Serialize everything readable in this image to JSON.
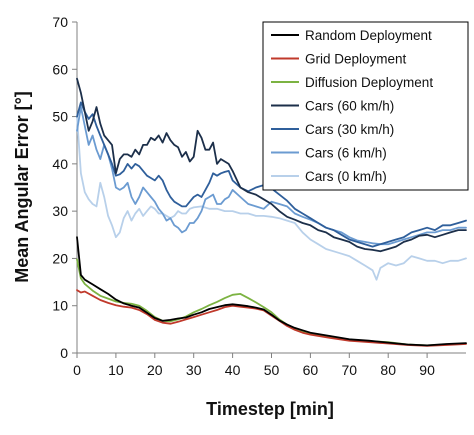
{
  "chart_data": {
    "type": "line",
    "title": "",
    "xlabel": "Timestep [min]",
    "ylabel": "Mean Angular Error [°]",
    "xlim": [
      0,
      100
    ],
    "ylim": [
      0,
      70
    ],
    "xticks": [
      0,
      10,
      20,
      30,
      40,
      50,
      60,
      70,
      80,
      90
    ],
    "yticks": [
      0,
      10,
      20,
      30,
      40,
      50,
      60,
      70
    ],
    "grid": false,
    "legend_position": "top-right",
    "series": [
      {
        "name": "Random Deployment",
        "color": "#000000",
        "x": [
          0,
          1,
          2,
          4,
          6,
          8,
          10,
          12,
          14,
          16,
          18,
          20,
          22,
          24,
          26,
          28,
          30,
          32,
          34,
          36,
          38,
          40,
          42,
          44,
          46,
          48,
          50,
          52,
          54,
          56,
          58,
          60,
          65,
          70,
          75,
          80,
          85,
          90,
          95,
          100
        ],
        "y": [
          24.5,
          16.5,
          15.5,
          14.5,
          13.5,
          12.5,
          11.3,
          10.5,
          10.0,
          9.6,
          8.5,
          7.4,
          6.8,
          7.0,
          7.3,
          7.5,
          8.1,
          8.6,
          9.3,
          9.7,
          10.1,
          10.3,
          10.1,
          9.9,
          9.6,
          9.2,
          8.1,
          6.9,
          6.0,
          5.3,
          4.8,
          4.3,
          3.6,
          2.9,
          2.6,
          2.2,
          1.8,
          1.6,
          1.9,
          2.1
        ]
      },
      {
        "name": "Grid Deployment",
        "color": "#c0392b",
        "x": [
          0,
          1,
          2,
          4,
          6,
          8,
          10,
          12,
          14,
          16,
          18,
          20,
          22,
          24,
          26,
          28,
          30,
          32,
          34,
          36,
          38,
          40,
          42,
          44,
          46,
          48,
          50,
          52,
          54,
          56,
          58,
          60,
          65,
          70,
          75,
          80,
          85,
          90,
          95,
          100
        ],
        "y": [
          13.3,
          12.8,
          13.0,
          12.1,
          11.2,
          10.6,
          10.1,
          9.8,
          9.6,
          9.1,
          8.2,
          7.0,
          6.4,
          6.2,
          6.6,
          7.1,
          7.6,
          8.1,
          8.6,
          9.1,
          9.7,
          10.0,
          9.8,
          9.6,
          9.4,
          9.0,
          7.9,
          6.8,
          5.7,
          4.9,
          4.3,
          3.9,
          3.2,
          2.6,
          2.3,
          2.0,
          1.7,
          1.5,
          1.7,
          1.9
        ]
      },
      {
        "name": "Diffusion Deployment",
        "color": "#7cb342",
        "x": [
          0,
          1,
          2,
          4,
          6,
          8,
          10,
          12,
          14,
          16,
          18,
          20,
          22,
          24,
          26,
          28,
          30,
          32,
          34,
          36,
          38,
          40,
          42,
          44,
          46,
          48,
          50,
          52,
          54,
          56,
          58,
          60,
          65,
          70,
          75,
          80,
          85,
          90,
          95,
          100
        ],
        "y": [
          19.8,
          15.8,
          14.6,
          13.2,
          12.1,
          11.5,
          10.9,
          10.6,
          10.4,
          10.0,
          8.9,
          7.6,
          6.8,
          6.7,
          7.1,
          7.7,
          8.6,
          9.3,
          10.1,
          10.8,
          11.6,
          12.3,
          12.5,
          11.6,
          10.7,
          9.7,
          8.6,
          7.1,
          6.0,
          5.2,
          4.6,
          4.1,
          3.3,
          2.7,
          2.5,
          2.3,
          1.8,
          1.6,
          1.8,
          2.0
        ]
      },
      {
        "name": "Cars (60 km/h)",
        "color": "#1c2f4a",
        "x": [
          0,
          1,
          2,
          3,
          4,
          5,
          6,
          7,
          8,
          9,
          10,
          11,
          12,
          13,
          14,
          15,
          16,
          17,
          18,
          19,
          20,
          21,
          22,
          23,
          24,
          25,
          26,
          27,
          28,
          29,
          30,
          31,
          32,
          33,
          34,
          35,
          36,
          37,
          38,
          39,
          40,
          42,
          44,
          46,
          48,
          50,
          52,
          54,
          56,
          58,
          60,
          62,
          64,
          66,
          68,
          70,
          72,
          74,
          76,
          78,
          80,
          82,
          84,
          86,
          88,
          90,
          92,
          94,
          96,
          98,
          100
        ],
        "y": [
          58,
          55,
          51,
          47,
          49,
          52,
          48.5,
          46,
          45,
          44,
          38,
          41,
          42,
          42,
          41.5,
          43,
          42,
          44,
          44,
          45.5,
          45,
          46,
          44.5,
          46.5,
          45,
          44,
          43.5,
          41.5,
          42.5,
          40.5,
          41.5,
          47,
          45.5,
          43,
          43,
          44.5,
          40,
          41,
          40.5,
          40,
          38.5,
          35,
          34,
          33.5,
          32.5,
          31.5,
          30,
          28.8,
          28.2,
          27.5,
          27,
          26,
          25.5,
          24.5,
          24,
          23.5,
          22.5,
          22,
          21.8,
          21.5,
          22,
          22.5,
          23.5,
          24,
          24.8,
          25,
          24.5,
          25,
          25.5,
          26,
          26
        ]
      },
      {
        "name": "Cars (30 km/h)",
        "color": "#2f5f9b",
        "x": [
          0,
          1,
          2,
          3,
          4,
          5,
          6,
          7,
          8,
          9,
          10,
          11,
          12,
          13,
          14,
          15,
          16,
          17,
          18,
          19,
          20,
          21,
          22,
          23,
          24,
          25,
          26,
          27,
          28,
          29,
          30,
          31,
          32,
          33,
          34,
          35,
          36,
          37,
          38,
          39,
          40,
          42,
          44,
          46,
          48,
          50,
          52,
          54,
          56,
          58,
          60,
          62,
          64,
          66,
          68,
          70,
          72,
          74,
          76,
          78,
          80,
          82,
          84,
          86,
          88,
          90,
          92,
          94,
          96,
          98,
          100
        ],
        "y": [
          50,
          53,
          51,
          49.5,
          50.5,
          48,
          46,
          44,
          42,
          40,
          37.5,
          37.8,
          38.5,
          40,
          39,
          40,
          39.5,
          38.5,
          37.5,
          37,
          36.5,
          37.5,
          36.5,
          34.5,
          33,
          32,
          31.5,
          31,
          31,
          32,
          33,
          33.5,
          33,
          34.5,
          36,
          38,
          37.5,
          38,
          38.3,
          38.5,
          36.5,
          35,
          34.2,
          35,
          35.5,
          34.8,
          33.5,
          32.2,
          30.5,
          29.5,
          28.5,
          27.5,
          26.5,
          26,
          25,
          24,
          23.5,
          23,
          22.5,
          23,
          23.5,
          24,
          24.5,
          25.5,
          26,
          26.5,
          26,
          27,
          27,
          27.5,
          28
        ]
      },
      {
        "name": "Cars (6 km/h)",
        "color": "#6b9bd1",
        "x": [
          0,
          1,
          2,
          3,
          4,
          5,
          6,
          7,
          8,
          9,
          10,
          11,
          12,
          13,
          14,
          15,
          16,
          17,
          18,
          19,
          20,
          21,
          22,
          23,
          24,
          25,
          26,
          27,
          28,
          29,
          30,
          31,
          32,
          33,
          34,
          35,
          36,
          37,
          38,
          39,
          40,
          42,
          44,
          46,
          48,
          50,
          52,
          54,
          56,
          58,
          60,
          62,
          64,
          66,
          68,
          70,
          72,
          74,
          76,
          78,
          80,
          82,
          84,
          86,
          88,
          90,
          92,
          94,
          96,
          98,
          100
        ],
        "y": [
          47,
          52,
          48,
          44,
          46,
          43,
          41,
          44,
          42,
          39,
          35,
          34.5,
          35,
          36,
          33,
          31.5,
          33,
          35,
          34,
          33,
          32,
          30.5,
          29.5,
          28,
          28.5,
          27,
          26.5,
          25.5,
          26,
          27.5,
          27.5,
          28.5,
          30,
          32.5,
          33,
          33.5,
          31.5,
          31.5,
          32.5,
          33,
          34.5,
          33,
          31.5,
          31,
          30.5,
          32,
          31.5,
          31,
          29.5,
          28.8,
          28.2,
          27.5,
          26.5,
          26,
          25.5,
          24.5,
          23.8,
          23.5,
          23.2,
          23,
          23,
          23.5,
          24,
          24.5,
          25,
          25.5,
          25.5,
          26,
          26,
          26.5,
          26.5
        ]
      },
      {
        "name": "Cars (0 km/h)",
        "color": "#b8d0ea",
        "x": [
          0,
          1,
          2,
          3,
          4,
          5,
          6,
          7,
          8,
          9,
          10,
          11,
          12,
          13,
          14,
          15,
          16,
          17,
          18,
          19,
          20,
          21,
          22,
          23,
          24,
          25,
          26,
          27,
          28,
          29,
          30,
          32,
          34,
          36,
          38,
          40,
          42,
          44,
          46,
          48,
          50,
          52,
          54,
          56,
          58,
          60,
          62,
          64,
          66,
          68,
          70,
          72,
          74,
          76,
          77,
          78,
          80,
          82,
          84,
          86,
          88,
          90,
          92,
          94,
          96,
          98,
          100
        ],
        "y": [
          50,
          38,
          34,
          32.5,
          31.5,
          31,
          36,
          33,
          29,
          27,
          24.5,
          25.5,
          28.5,
          30,
          28,
          29.5,
          30.5,
          29,
          30,
          31,
          30.5,
          29.5,
          29.5,
          29,
          28.5,
          29,
          30,
          29.5,
          29.5,
          30.5,
          30.8,
          31,
          30.5,
          30.5,
          30,
          30,
          29.5,
          29.5,
          29,
          29,
          28.8,
          28.5,
          28,
          27.5,
          25.5,
          24,
          23,
          22,
          21.5,
          21,
          20.5,
          19.5,
          18.5,
          17.5,
          15.5,
          18,
          19,
          18.5,
          19,
          20.5,
          20,
          19.5,
          19.5,
          19,
          19.5,
          19.5,
          20
        ]
      }
    ]
  }
}
